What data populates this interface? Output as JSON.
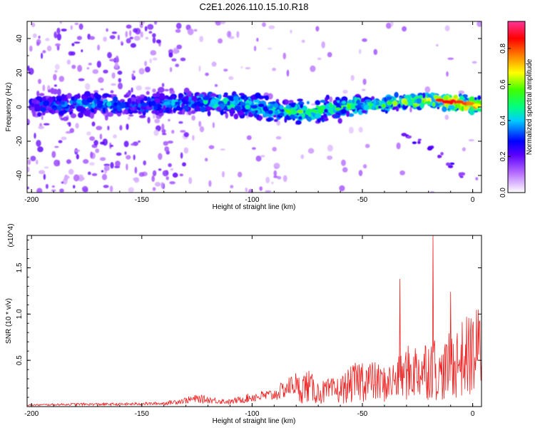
{
  "title": "C2E1.2026.110.15.10.R18",
  "chart_data": [
    {
      "type": "heatmap",
      "xlabel": "Height of straight line (km)",
      "ylabel": "Frequency (Hz)",
      "xlim": [
        -202,
        4
      ],
      "ylim": [
        -50,
        50
      ],
      "xticks": [
        -200,
        -150,
        -100,
        -50,
        0
      ],
      "yticks": [
        -40,
        -20,
        0,
        20,
        40
      ],
      "colorbar": {
        "label": "Normalized spectral amplitude",
        "range": [
          0,
          0.95
        ],
        "ticks": [
          "0.0",
          "0.2",
          "0.4",
          "0.6",
          "0.8"
        ],
        "tick_values": [
          0,
          0.2,
          0.4,
          0.6,
          0.8
        ],
        "colors": [
          "#ffffff",
          "#cc99ff",
          "#9933ff",
          "#0000ff",
          "#00ffff",
          "#00ff00",
          "#ffff00",
          "#ff8000",
          "#ff0000",
          "#ff0080"
        ]
      },
      "ridge": {
        "description": "main spectral ridge near 0 Hz",
        "x": [
          -200,
          -175,
          -150,
          -125,
          -100,
          -90,
          -75,
          -60,
          -50,
          -40,
          -30,
          -20,
          -10,
          0
        ],
        "freq": [
          1,
          2,
          1,
          3,
          1,
          -2,
          -3,
          0,
          1,
          2,
          3,
          4,
          3,
          1
        ],
        "amplitude": [
          0.35,
          0.42,
          0.38,
          0.48,
          0.5,
          0.52,
          0.58,
          0.55,
          0.6,
          0.62,
          0.65,
          0.7,
          0.9,
          0.8
        ]
      },
      "secondary_branch": {
        "x": [
          -30,
          -25,
          -20,
          -15,
          -10,
          -5
        ],
        "freq": [
          -17,
          -20,
          -24,
          -28,
          -34,
          -40
        ]
      }
    },
    {
      "type": "line",
      "xlabel": "Height of straight line (km)",
      "ylabel": "SNR (10 * v/v)",
      "y_multiplier": "(x10^4)",
      "xlim": [
        -202,
        4
      ],
      "ylim": [
        0,
        1.85
      ],
      "xticks": [
        -200,
        -150,
        -100,
        -50,
        0
      ],
      "yticks": [
        0.5,
        1.0,
        1.5
      ],
      "ytick_labels": [
        "0.5",
        "1.0",
        "1.5"
      ],
      "color": "#ee2222",
      "envelope_x": [
        -200,
        -180,
        -160,
        -140,
        -125,
        -110,
        -100,
        -90,
        -80,
        -75,
        -70,
        -60,
        -50,
        -40,
        -33,
        -30,
        -25,
        -20,
        -18,
        -15,
        -10,
        -5,
        0,
        4
      ],
      "envelope_y": [
        0.02,
        0.03,
        0.03,
        0.04,
        0.1,
        0.06,
        0.12,
        0.15,
        0.3,
        0.38,
        0.25,
        0.3,
        0.5,
        0.4,
        0.5,
        0.6,
        0.65,
        0.7,
        0.75,
        0.55,
        0.75,
        0.85,
        0.95,
        1.05
      ],
      "spikes": [
        {
          "x": -33,
          "y": 1.38
        },
        {
          "x": -18,
          "y": 1.85
        },
        {
          "x": -10,
          "y": 1.24
        }
      ]
    }
  ]
}
